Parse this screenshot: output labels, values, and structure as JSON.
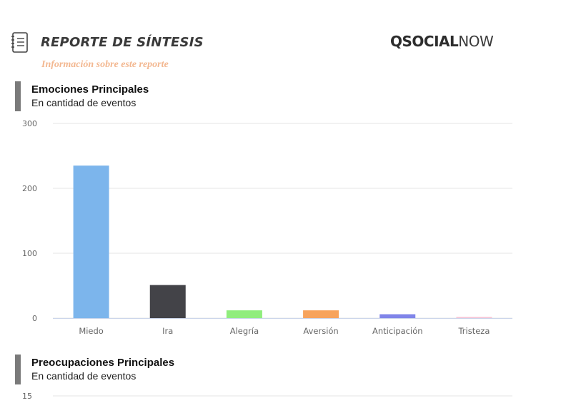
{
  "header": {
    "title": "REPORTE DE SÍNTESIS",
    "subtitle": "Información sobre este reporte",
    "icon": "report-list-icon"
  },
  "brand": {
    "bold": "QSOCIAL",
    "light": "NOW"
  },
  "sections": [
    {
      "title": "Emociones Principales",
      "subtitle": "En cantidad de eventos"
    },
    {
      "title": "Preocupaciones Principales",
      "subtitle": "En cantidad de eventos"
    }
  ],
  "chart_data": [
    {
      "type": "bar",
      "title": "Emociones Principales",
      "subtitle": "En cantidad de eventos",
      "categories": [
        "Miedo",
        "Ira",
        "Alegría",
        "Aversión",
        "Anticipación",
        "Tristeza"
      ],
      "values": [
        235,
        51,
        12,
        12,
        6,
        2
      ],
      "colors": [
        "#7cb5ec",
        "#434348",
        "#90ed7d",
        "#f7a35c",
        "#8085e9",
        "#f7c8d8"
      ],
      "ylim": [
        0,
        300
      ],
      "yticks": [
        0,
        100,
        200,
        300
      ],
      "grid": true
    },
    {
      "type": "bar",
      "title": "Preocupaciones Principales",
      "subtitle": "En cantidad de eventos",
      "yticks": [
        15
      ],
      "grid": true
    }
  ]
}
